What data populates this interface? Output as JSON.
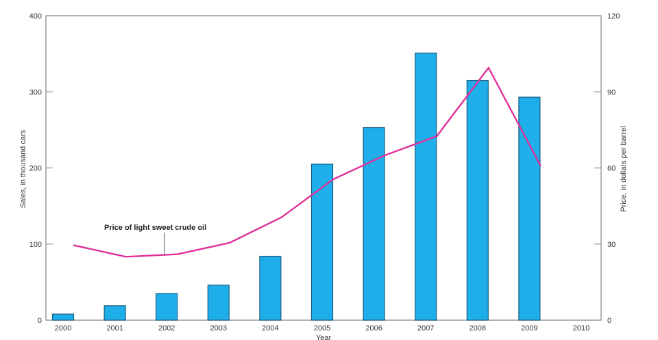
{
  "chart_data": {
    "type": "bar",
    "title": "",
    "xlabel": "Year",
    "ylabel": "Sales, in thousand cars",
    "ylabel_right": "Price, in dollars per barrel",
    "categories": [
      "2000",
      "2001",
      "2002",
      "2003",
      "2004",
      "2005",
      "2006",
      "2007",
      "2008",
      "2009",
      "2010"
    ],
    "ylim": [
      0,
      400
    ],
    "ylim_right": [
      0,
      120
    ],
    "yticks": [
      0,
      100,
      200,
      300,
      400
    ],
    "yticks_right": [
      0,
      30,
      60,
      90,
      120
    ],
    "grid": false,
    "series": [
      {
        "name": "Sales",
        "type": "bar",
        "axis": "left",
        "color": "#1eaee9",
        "edge_color": "#1b5d80",
        "values": [
          8,
          19,
          35,
          46,
          84,
          205,
          253,
          351,
          315,
          293,
          null
        ]
      },
      {
        "name": "Price of light sweet crude oil",
        "type": "line",
        "axis": "right",
        "color": "#e0309a",
        "values": [
          29.5,
          25,
          26,
          30.5,
          40.5,
          55.5,
          65,
          72.5,
          99.5,
          61,
          null
        ]
      }
    ],
    "annotations": [
      {
        "text": "Price of light sweet crude oil",
        "target_series": "Price of light sweet crude oil",
        "target_category": "2002"
      }
    ]
  }
}
